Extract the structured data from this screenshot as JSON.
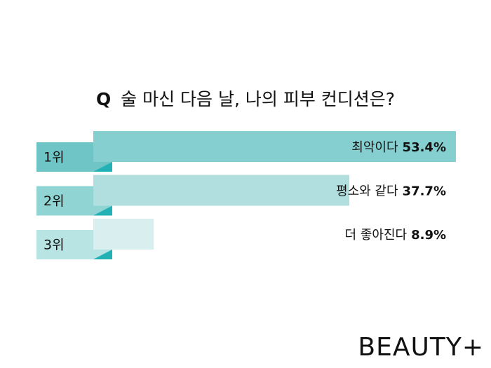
{
  "chart_data": {
    "type": "bar",
    "title_prefix": "Q",
    "title": "술 마신 다음 날, 나의 피부 컨디션은?",
    "ranks": [
      "1위",
      "2위",
      "3위"
    ],
    "categories": [
      "최악이다",
      "평소와 같다",
      "더 좋아진다"
    ],
    "values": [
      53.4,
      37.7,
      8.9
    ],
    "value_labels": [
      "53.4%",
      "37.7%",
      "8.9%"
    ],
    "colors": [
      "#86cfd0",
      "#b1dfdf",
      "#d9efef"
    ],
    "rank_colors": [
      "#6fc5c6",
      "#90d4d4",
      "#b8e4e4"
    ],
    "accent_color": "#22b2b5"
  },
  "brand": "BEAUTY+"
}
